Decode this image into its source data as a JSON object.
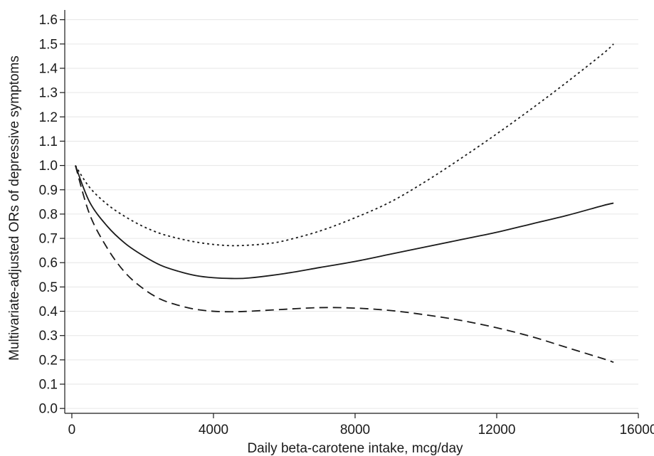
{
  "chart_data": {
    "type": "line",
    "title": "",
    "xlabel": "Daily beta-carotene intake, mcg/day",
    "ylabel": "Multivariate-adjusted ORs of depressive symptoms",
    "xlim": [
      -200,
      16000
    ],
    "ylim": [
      -0.02,
      1.64
    ],
    "xticks": [
      0,
      4000,
      8000,
      12000,
      16000
    ],
    "xtick_labels": [
      "0",
      "4000",
      "8000",
      "12000",
      "16000"
    ],
    "yticks": [
      0.0,
      0.1,
      0.2,
      0.3,
      0.4,
      0.5,
      0.6,
      0.7,
      0.8,
      0.9,
      1.0,
      1.1,
      1.2,
      1.3,
      1.4,
      1.5,
      1.6
    ],
    "ytick_labels": [
      "0.0",
      "0.1",
      "0.2",
      "0.3",
      "0.4",
      "0.5",
      "0.6",
      "0.7",
      "0.8",
      "0.9",
      "1.0",
      "1.1",
      "1.2",
      "1.3",
      "1.4",
      "1.5",
      "1.6"
    ],
    "grid": "horizontal",
    "legend": "none",
    "series": [
      {
        "style": "solid",
        "color": "#1a1a1a",
        "x": [
          100,
          500,
          1000,
          1500,
          2000,
          2500,
          3000,
          3500,
          4000,
          4500,
          5000,
          6000,
          7000,
          8000,
          9000,
          10000,
          11000,
          12000,
          13000,
          14000,
          15000,
          15300
        ],
        "y": [
          1.0,
          0.85,
          0.75,
          0.68,
          0.63,
          0.59,
          0.565,
          0.547,
          0.538,
          0.535,
          0.537,
          0.555,
          0.58,
          0.605,
          0.635,
          0.665,
          0.695,
          0.725,
          0.76,
          0.795,
          0.835,
          0.845
        ]
      },
      {
        "style": "dotted",
        "color": "#1a1a1a",
        "x": [
          100,
          500,
          1000,
          1500,
          2000,
          2500,
          3000,
          3500,
          4000,
          4500,
          5000,
          5500,
          6000,
          7000,
          8000,
          9000,
          10000,
          11000,
          12000,
          13000,
          14000,
          15000,
          15300
        ],
        "y": [
          1.0,
          0.91,
          0.84,
          0.79,
          0.75,
          0.72,
          0.7,
          0.685,
          0.675,
          0.67,
          0.672,
          0.678,
          0.69,
          0.73,
          0.785,
          0.85,
          0.935,
          1.03,
          1.13,
          1.235,
          1.345,
          1.46,
          1.5
        ]
      },
      {
        "style": "dashed",
        "color": "#1a1a1a",
        "x": [
          100,
          500,
          1000,
          1500,
          2000,
          2500,
          3000,
          3500,
          4000,
          4500,
          5000,
          6000,
          7000,
          8000,
          9000,
          10000,
          11000,
          12000,
          13000,
          14000,
          15000,
          15300
        ],
        "y": [
          1.0,
          0.8,
          0.66,
          0.56,
          0.495,
          0.45,
          0.425,
          0.408,
          0.4,
          0.398,
          0.4,
          0.408,
          0.415,
          0.413,
          0.403,
          0.385,
          0.362,
          0.332,
          0.295,
          0.25,
          0.205,
          0.19
        ]
      }
    ]
  }
}
